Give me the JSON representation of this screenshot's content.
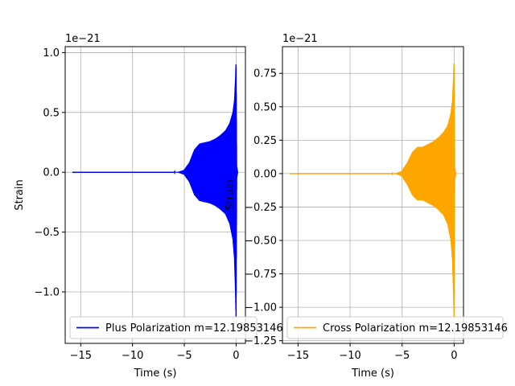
{
  "chart_data": [
    {
      "type": "line",
      "title": "",
      "xlabel": "Time (s)",
      "ylabel": "Strain",
      "offset_text": "1e−21",
      "xlim": [
        -16.5,
        0.9
      ],
      "ylim": [
        -1.43,
        1.05
      ],
      "grid": true,
      "legend_location": "lower-left",
      "xticks": [
        -15,
        -10,
        -5,
        0
      ],
      "xtick_labels": [
        "−15",
        "−10",
        "−5",
        "0"
      ],
      "yticks": [
        1.0,
        0.5,
        0.0,
        -0.5,
        -1.0
      ],
      "ytick_labels": [
        "1.0",
        "0.5",
        "0.0",
        "−0.5",
        "−1.0"
      ],
      "series": [
        {
          "name": "Plus Polarization m=12.19853146",
          "color": "#0000ff",
          "x_start": -15.8,
          "x_end": 0.15,
          "envelope": {
            "t": [
              -15.8,
              -6.0,
              -5.5,
              -5.0,
              -4.5,
              -4.0,
              -3.5,
              -3.0,
              -2.5,
              -2.0,
              -1.5,
              -1.0,
              -0.6,
              -0.3,
              -0.15,
              -0.05,
              0.0,
              0.05,
              0.15
            ],
            "upper": [
              0.0,
              0.0,
              0.005,
              0.02,
              0.08,
              0.19,
              0.24,
              0.25,
              0.26,
              0.28,
              0.31,
              0.35,
              0.41,
              0.5,
              0.6,
              0.78,
              0.93,
              0.05,
              0.0
            ],
            "lower": [
              0.0,
              0.0,
              -0.005,
              -0.02,
              -0.08,
              -0.19,
              -0.24,
              -0.25,
              -0.26,
              -0.28,
              -0.31,
              -0.35,
              -0.43,
              -0.56,
              -0.72,
              -1.0,
              -1.22,
              -0.05,
              0.0
            ]
          }
        }
      ]
    },
    {
      "type": "line",
      "title": "",
      "xlabel": "Time (s)",
      "ylabel": "Strain",
      "offset_text": "1e−21",
      "xlim": [
        -16.5,
        0.9
      ],
      "ylim": [
        -1.27,
        0.95
      ],
      "grid": true,
      "legend_location": "lower-left",
      "xticks": [
        -15,
        -10,
        -5,
        0
      ],
      "xtick_labels": [
        "−15",
        "−10",
        "−5",
        "0"
      ],
      "yticks": [
        0.75,
        0.5,
        0.25,
        0.0,
        -0.25,
        -0.5,
        -0.75,
        -1.0,
        -1.25
      ],
      "ytick_labels": [
        "0.75",
        "0.50",
        "0.25",
        "0.00",
        "−0.25",
        "−0.50",
        "−0.75",
        "−1.00",
        "−1.25"
      ],
      "series": [
        {
          "name": "Cross Polarization m=12.19853146",
          "color": "#ffa500",
          "x_start": -15.8,
          "x_end": 0.15,
          "envelope": {
            "t": [
              -15.8,
              -6.0,
              -5.5,
              -5.0,
              -4.5,
              -4.0,
              -3.5,
              -3.0,
              -2.5,
              -2.0,
              -1.5,
              -1.0,
              -0.6,
              -0.3,
              -0.15,
              -0.05,
              0.0,
              0.05,
              0.15
            ],
            "upper": [
              0.0,
              0.0,
              0.005,
              0.02,
              0.08,
              0.16,
              0.2,
              0.2,
              0.22,
              0.24,
              0.27,
              0.31,
              0.36,
              0.45,
              0.55,
              0.72,
              0.85,
              0.05,
              0.0
            ],
            "lower": [
              0.0,
              0.0,
              -0.005,
              -0.02,
              -0.08,
              -0.16,
              -0.2,
              -0.2,
              -0.22,
              -0.24,
              -0.27,
              -0.31,
              -0.38,
              -0.5,
              -0.65,
              -0.9,
              -1.1,
              -0.05,
              0.0
            ]
          }
        }
      ]
    }
  ]
}
